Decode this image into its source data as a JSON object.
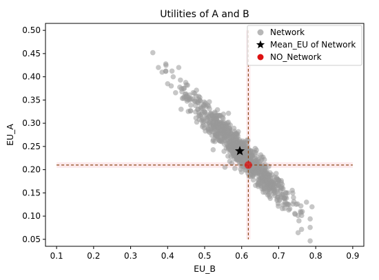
{
  "chart_data": {
    "type": "scatter",
    "title": "Utilities of A and B",
    "xlabel": "EU_B",
    "ylabel": "EU_A",
    "xlim": [
      0.07,
      0.93
    ],
    "ylim": [
      0.035,
      0.515
    ],
    "xticks": [
      0.1,
      0.2,
      0.3,
      0.4,
      0.5,
      0.6,
      0.7,
      0.8,
      0.9
    ],
    "xtick_labels": [
      "0.1",
      "0.2",
      "0.3",
      "0.4",
      "0.5",
      "0.6",
      "0.7",
      "0.8",
      "0.9"
    ],
    "yticks": [
      0.05,
      0.1,
      0.15,
      0.2,
      0.25,
      0.3,
      0.35,
      0.4,
      0.45,
      0.5
    ],
    "ytick_labels": [
      "0.05",
      "0.10",
      "0.15",
      "0.20",
      "0.25",
      "0.30",
      "0.35",
      "0.40",
      "0.45",
      "0.50"
    ],
    "grid": false,
    "legend": {
      "position": "top-right",
      "entries": [
        {
          "label": "Network",
          "marker": "circle",
          "color": "#999999"
        },
        {
          "label": "Mean_EU of Network",
          "marker": "star",
          "color": "#000000"
        },
        {
          "label": "NO_Network",
          "marker": "circle",
          "color": "#dd1111"
        }
      ]
    },
    "network_cloud": {
      "count": 900,
      "center": [
        0.595,
        0.24
      ],
      "x_range": [
        0.36,
        0.79
      ],
      "y_range": [
        0.1,
        0.45
      ],
      "slope": -0.84,
      "color": "#999999",
      "opacity": 0.55
    },
    "network_outliers": {
      "x": [
        0.36,
        0.375,
        0.385,
        0.4,
        0.415,
        0.43,
        0.445,
        0.46,
        0.76,
        0.775,
        0.79,
        0.74,
        0.72
      ],
      "y": [
        0.452,
        0.42,
        0.41,
        0.385,
        0.4,
        0.42,
        0.375,
        0.35,
        0.122,
        0.13,
        0.12,
        0.14,
        0.15
      ]
    },
    "mean_point": {
      "x": 0.595,
      "y": 0.24
    },
    "no_network_point": {
      "x": 0.618,
      "y": 0.21
    },
    "ref_lines": {
      "hline_y": 0.21,
      "hline_x_range": [
        0.1,
        0.9
      ],
      "vline_x": 0.618,
      "vline_y_range": [
        0.05,
        0.5
      ],
      "dash_color": "#8b4513",
      "band_color": "#f4a6b4"
    }
  }
}
